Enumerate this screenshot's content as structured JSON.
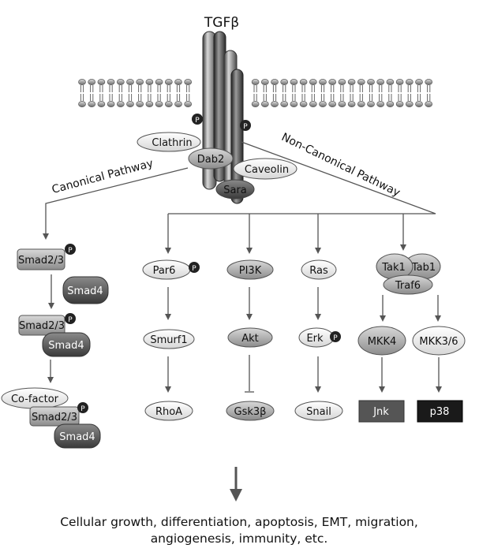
{
  "receptor": {
    "ligand": "TGFβ",
    "phospho": "P"
  },
  "adaptors": {
    "clathrin": "Clathrin",
    "dab2": "Dab2",
    "caveolin": "Caveolin",
    "sara": "Sara"
  },
  "pathways": {
    "canonical": "Canonical Pathway",
    "noncanonical": "Non-Canonical Pathway"
  },
  "canonical": {
    "smad23": "Smad2/3",
    "smad4": "Smad4",
    "cofactor": "Co-factor"
  },
  "branches": {
    "par6": "Par6",
    "smurf1": "Smurf1",
    "rhoa": "RhoA",
    "pi3k": "PI3K",
    "akt": "Akt",
    "gsk3b": "Gsk3β",
    "ras": "Ras",
    "erk": "Erk",
    "snail": "Snail",
    "tak1": "Tak1",
    "tab1": "Tab1",
    "traf6": "Traf6",
    "mkk4": "MKK4",
    "mkk36": "MKK3/6",
    "jnk": "Jnk",
    "p38": "p38"
  },
  "outcome": {
    "line1": "Cellular growth, differentiation, apoptosis, EMT, migration,",
    "line2": "angiogenesis, immunity, etc."
  },
  "colors": {
    "ink": "#111111",
    "dark": "#444444",
    "mid": "#999999",
    "light": "#dddddd"
  }
}
